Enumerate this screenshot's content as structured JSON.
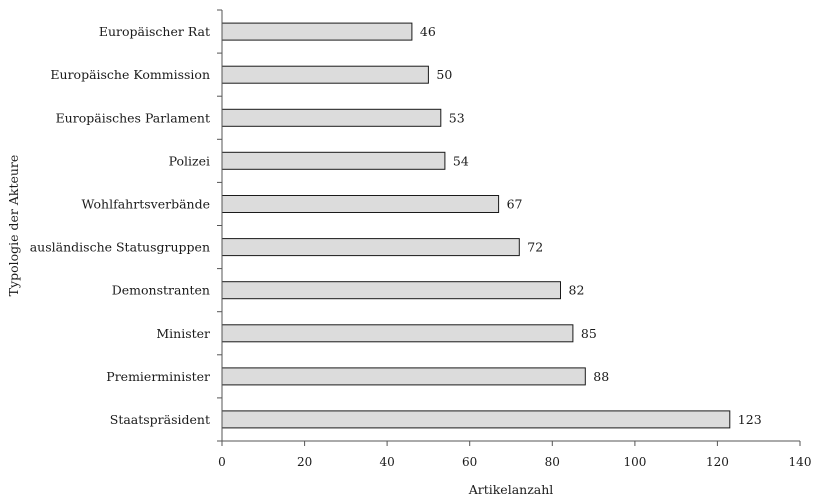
{
  "chart_data": {
    "type": "bar",
    "orientation": "horizontal",
    "categories": [
      "Europäischer Rat",
      "Europäische Kommission",
      "Europäisches Parlament",
      "Polizei",
      "Wohlfahrtsverbände",
      "ausländische Statusgruppen",
      "Demonstranten",
      "Minister",
      "Premierminister",
      "Staatspräsident"
    ],
    "values": [
      46,
      50,
      53,
      54,
      67,
      72,
      82,
      85,
      88,
      123
    ],
    "value_labels": [
      "46",
      "50",
      "53",
      "54",
      "67",
      "72",
      "82",
      "85",
      "88",
      "123"
    ],
    "xlabel": "Artikelanzahl",
    "ylabel": "Typologie der Akteure",
    "xlim": [
      0,
      140
    ],
    "xticks": [
      0,
      20,
      40,
      60,
      80,
      100,
      120,
      140
    ],
    "xtick_labels": [
      "0",
      "20",
      "40",
      "60",
      "80",
      "100",
      "120",
      "140"
    ],
    "grid": false,
    "legend": "none",
    "colors": {
      "bar_fill": "#dcdcdc",
      "bar_stroke": "#1a1a1a",
      "axis": "#555555"
    }
  }
}
